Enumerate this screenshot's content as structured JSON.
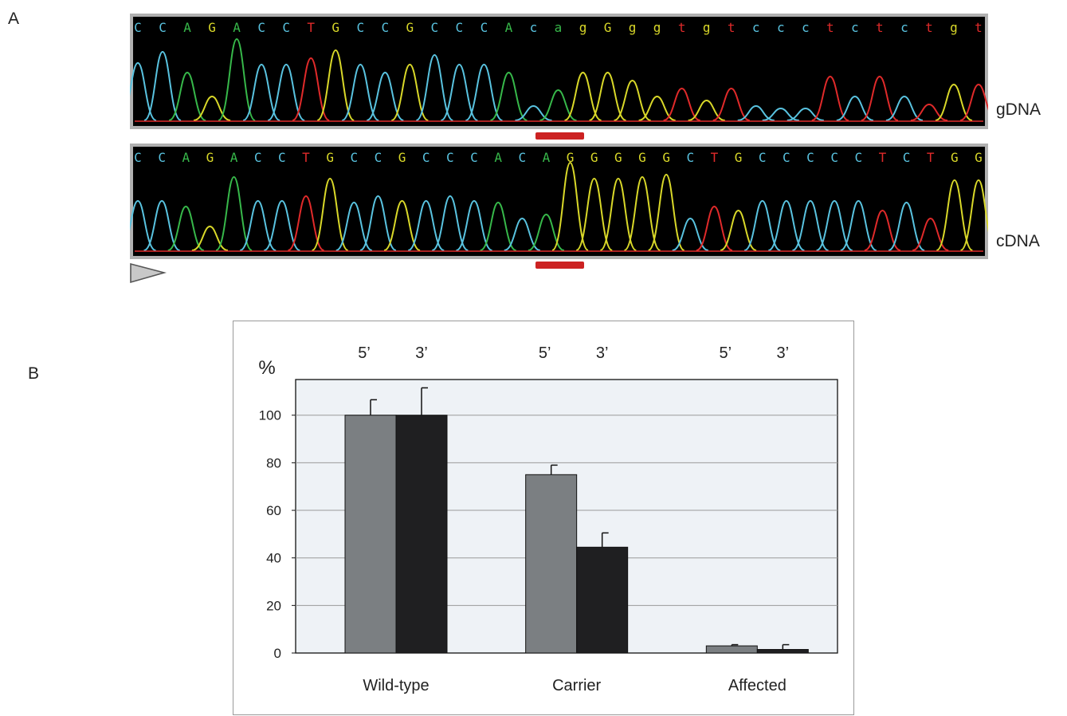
{
  "panel_a": {
    "label": "A",
    "traces": [
      {
        "label": "gDNA",
        "bases": [
          {
            "b": "C",
            "c": "#59c3e0"
          },
          {
            "b": "C",
            "c": "#59c3e0"
          },
          {
            "b": "A",
            "c": "#37b84a"
          },
          {
            "b": "G",
            "c": "#d9d829"
          },
          {
            "b": "A",
            "c": "#37b84a"
          },
          {
            "b": "C",
            "c": "#59c3e0"
          },
          {
            "b": "C",
            "c": "#59c3e0"
          },
          {
            "b": "T",
            "c": "#e02a2a"
          },
          {
            "b": "G",
            "c": "#d9d829"
          },
          {
            "b": "C",
            "c": "#59c3e0"
          },
          {
            "b": "C",
            "c": "#59c3e0"
          },
          {
            "b": "G",
            "c": "#d9d829"
          },
          {
            "b": "C",
            "c": "#59c3e0"
          },
          {
            "b": "C",
            "c": "#59c3e0"
          },
          {
            "b": "C",
            "c": "#59c3e0"
          },
          {
            "b": "A",
            "c": "#37b84a"
          },
          {
            "b": "c",
            "c": "#59c3e0"
          },
          {
            "b": "a",
            "c": "#37b84a"
          },
          {
            "b": "g",
            "c": "#d9d829"
          },
          {
            "b": "G",
            "c": "#d9d829"
          },
          {
            "b": "g",
            "c": "#d9d829"
          },
          {
            "b": "g",
            "c": "#d9d829"
          },
          {
            "b": "t",
            "c": "#e02a2a"
          },
          {
            "b": "g",
            "c": "#d9d829"
          },
          {
            "b": "t",
            "c": "#e02a2a"
          },
          {
            "b": "c",
            "c": "#59c3e0"
          },
          {
            "b": "c",
            "c": "#59c3e0"
          },
          {
            "b": "c",
            "c": "#59c3e0"
          },
          {
            "b": "t",
            "c": "#e02a2a"
          },
          {
            "b": "c",
            "c": "#59c3e0"
          },
          {
            "b": "t",
            "c": "#e02a2a"
          },
          {
            "b": "c",
            "c": "#59c3e0"
          },
          {
            "b": "t",
            "c": "#e02a2a"
          },
          {
            "b": "g",
            "c": "#d9d829"
          },
          {
            "b": "t",
            "c": "#e02a2a"
          }
        ]
      },
      {
        "label": "cDNA",
        "bases": [
          {
            "b": "C",
            "c": "#59c3e0"
          },
          {
            "b": "C",
            "c": "#59c3e0"
          },
          {
            "b": "A",
            "c": "#37b84a"
          },
          {
            "b": "G",
            "c": "#d9d829"
          },
          {
            "b": "A",
            "c": "#37b84a"
          },
          {
            "b": "C",
            "c": "#59c3e0"
          },
          {
            "b": "C",
            "c": "#59c3e0"
          },
          {
            "b": "T",
            "c": "#e02a2a"
          },
          {
            "b": "G",
            "c": "#d9d829"
          },
          {
            "b": "C",
            "c": "#59c3e0"
          },
          {
            "b": "C",
            "c": "#59c3e0"
          },
          {
            "b": "G",
            "c": "#d9d829"
          },
          {
            "b": "C",
            "c": "#59c3e0"
          },
          {
            "b": "C",
            "c": "#59c3e0"
          },
          {
            "b": "C",
            "c": "#59c3e0"
          },
          {
            "b": "A",
            "c": "#37b84a"
          },
          {
            "b": "C",
            "c": "#59c3e0"
          },
          {
            "b": "A",
            "c": "#37b84a"
          },
          {
            "b": "G",
            "c": "#d9d829"
          },
          {
            "b": "G",
            "c": "#d9d829"
          },
          {
            "b": "G",
            "c": "#d9d829"
          },
          {
            "b": "G",
            "c": "#d9d829"
          },
          {
            "b": "G",
            "c": "#d9d829"
          },
          {
            "b": "C",
            "c": "#59c3e0"
          },
          {
            "b": "T",
            "c": "#e02a2a"
          },
          {
            "b": "G",
            "c": "#d9d829"
          },
          {
            "b": "C",
            "c": "#59c3e0"
          },
          {
            "b": "C",
            "c": "#59c3e0"
          },
          {
            "b": "C",
            "c": "#59c3e0"
          },
          {
            "b": "C",
            "c": "#59c3e0"
          },
          {
            "b": "C",
            "c": "#59c3e0"
          },
          {
            "b": "T",
            "c": "#e02a2a"
          },
          {
            "b": "C",
            "c": "#59c3e0"
          },
          {
            "b": "T",
            "c": "#e02a2a"
          },
          {
            "b": "G",
            "c": "#d9d829"
          },
          {
            "b": "G",
            "c": "#d9d829"
          }
        ]
      }
    ]
  },
  "panel_b": {
    "label": "B"
  },
  "chart_data": {
    "type": "bar",
    "ylabel": "%",
    "ylim": [
      0,
      115
    ],
    "yticks": [
      0,
      20,
      40,
      60,
      80,
      100
    ],
    "grid": true,
    "categories": [
      "Wild-type",
      "Carrier",
      "Affected"
    ],
    "series_header_labels": [
      "5’",
      "3’"
    ],
    "series": [
      {
        "values": [
          100,
          75,
          3
        ],
        "errors": [
          6.5,
          4,
          0.5
        ],
        "color": "#7b7f82"
      },
      {
        "values": [
          100,
          44.5,
          1.5
        ],
        "errors": [
          11.5,
          6,
          2
        ],
        "color": "#1f1f21"
      }
    ]
  }
}
